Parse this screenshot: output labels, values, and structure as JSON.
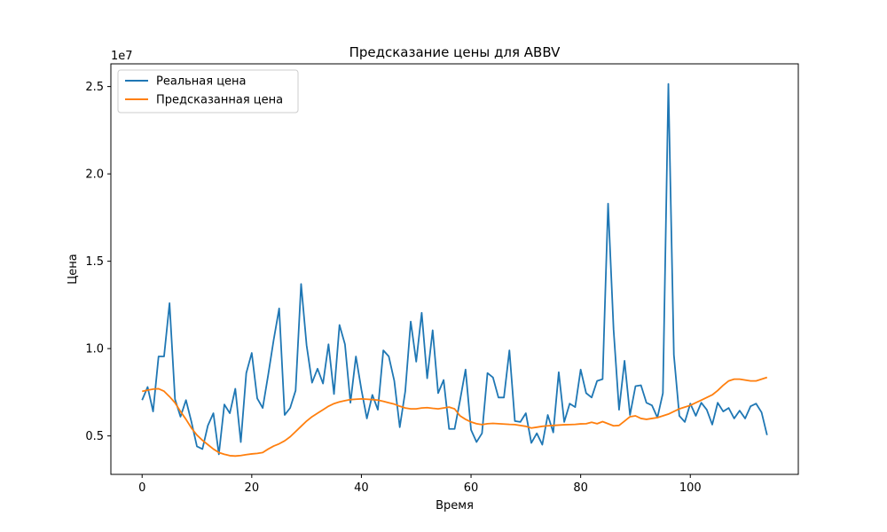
{
  "chart_data": {
    "type": "line",
    "title": "Предсказание цены для ABBV",
    "xlabel": "Время",
    "ylabel": "Цена",
    "y_offset_label": "1e7",
    "xlim": [
      -5.7,
      119.7
    ],
    "ylim": [
      2800000,
      26300000
    ],
    "x_ticks": [
      0,
      20,
      40,
      60,
      80,
      100
    ],
    "x_tick_labels": [
      "0",
      "20",
      "40",
      "60",
      "80",
      "100"
    ],
    "y_ticks": [
      5000000,
      10000000,
      15000000,
      20000000,
      25000000
    ],
    "y_tick_labels": [
      "0.5",
      "1.0",
      "1.5",
      "2.0",
      "2.5"
    ],
    "grid": false,
    "legend_position": "upper-left",
    "x": [
      0,
      1,
      2,
      3,
      4,
      5,
      6,
      7,
      8,
      9,
      10,
      11,
      12,
      13,
      14,
      15,
      16,
      17,
      18,
      19,
      20,
      21,
      22,
      23,
      24,
      25,
      26,
      27,
      28,
      29,
      30,
      31,
      32,
      33,
      34,
      35,
      36,
      37,
      38,
      39,
      40,
      41,
      42,
      43,
      44,
      45,
      46,
      47,
      48,
      49,
      50,
      51,
      52,
      53,
      54,
      55,
      56,
      57,
      58,
      59,
      60,
      61,
      62,
      63,
      64,
      65,
      66,
      67,
      68,
      69,
      70,
      71,
      72,
      73,
      74,
      75,
      76,
      77,
      78,
      79,
      80,
      81,
      82,
      83,
      84,
      85,
      86,
      87,
      88,
      89,
      90,
      91,
      92,
      93,
      94,
      95,
      96,
      97,
      98,
      99,
      100,
      101,
      102,
      103,
      104,
      105,
      106,
      107,
      108,
      109,
      110,
      111,
      112,
      113,
      114
    ],
    "series": [
      {
        "name": "Реальная цена",
        "color": "#1f77b4",
        "values": [
          7050000,
          7800000,
          6400000,
          9550000,
          9550000,
          12600000,
          7100000,
          6100000,
          7050000,
          5800000,
          4400000,
          4250000,
          5600000,
          6300000,
          3950000,
          6800000,
          6300000,
          7700000,
          4650000,
          8600000,
          9750000,
          7150000,
          6600000,
          8500000,
          10500000,
          12300000,
          6200000,
          6600000,
          7600000,
          13700000,
          10200000,
          8050000,
          8850000,
          8000000,
          10250000,
          7400000,
          11350000,
          10250000,
          6900000,
          9550000,
          7650000,
          6000000,
          7350000,
          6500000,
          9900000,
          9550000,
          8150000,
          5500000,
          7550000,
          11550000,
          9250000,
          12050000,
          8300000,
          11050000,
          7450000,
          8200000,
          5400000,
          5400000,
          7050000,
          8800000,
          5350000,
          4650000,
          5150000,
          8600000,
          8350000,
          7200000,
          7200000,
          9900000,
          5850000,
          5800000,
          6300000,
          4600000,
          5150000,
          4500000,
          6200000,
          5200000,
          8650000,
          5800000,
          6850000,
          6650000,
          8800000,
          7450000,
          7200000,
          8150000,
          8250000,
          18300000,
          11100000,
          6500000,
          9300000,
          6200000,
          7850000,
          7900000,
          6900000,
          6750000,
          6050000,
          7450000,
          25150000,
          9650000,
          6150000,
          5800000,
          6850000,
          6150000,
          6900000,
          6500000,
          5650000,
          6900000,
          6400000,
          6600000,
          6000000,
          6450000,
          6000000,
          6700000,
          6850000,
          6350000,
          5050000
        ]
      },
      {
        "name": "Предсказанная цена",
        "color": "#ff7f0e",
        "values": [
          7550000,
          7620000,
          7680000,
          7700000,
          7560000,
          7250000,
          6900000,
          6400000,
          5950000,
          5450000,
          5050000,
          4750000,
          4500000,
          4250000,
          4050000,
          3950000,
          3870000,
          3850000,
          3880000,
          3930000,
          3970000,
          4000000,
          4050000,
          4250000,
          4420000,
          4550000,
          4720000,
          4950000,
          5250000,
          5550000,
          5850000,
          6100000,
          6300000,
          6500000,
          6700000,
          6850000,
          6950000,
          7020000,
          7080000,
          7100000,
          7120000,
          7100000,
          7080000,
          7050000,
          6980000,
          6900000,
          6820000,
          6700000,
          6600000,
          6550000,
          6550000,
          6600000,
          6620000,
          6580000,
          6550000,
          6600000,
          6650000,
          6550000,
          6150000,
          5950000,
          5800000,
          5700000,
          5650000,
          5700000,
          5720000,
          5700000,
          5680000,
          5660000,
          5650000,
          5600000,
          5550000,
          5450000,
          5500000,
          5550000,
          5580000,
          5600000,
          5620000,
          5640000,
          5650000,
          5660000,
          5690000,
          5700000,
          5780000,
          5700000,
          5820000,
          5700000,
          5580000,
          5600000,
          5850000,
          6100000,
          6150000,
          6000000,
          5950000,
          6000000,
          6050000,
          6150000,
          6250000,
          6400000,
          6550000,
          6650000,
          6750000,
          6900000,
          7050000,
          7200000,
          7350000,
          7600000,
          7900000,
          8150000,
          8250000,
          8250000,
          8200000,
          8150000,
          8150000,
          8250000,
          8350000
        ]
      }
    ]
  }
}
